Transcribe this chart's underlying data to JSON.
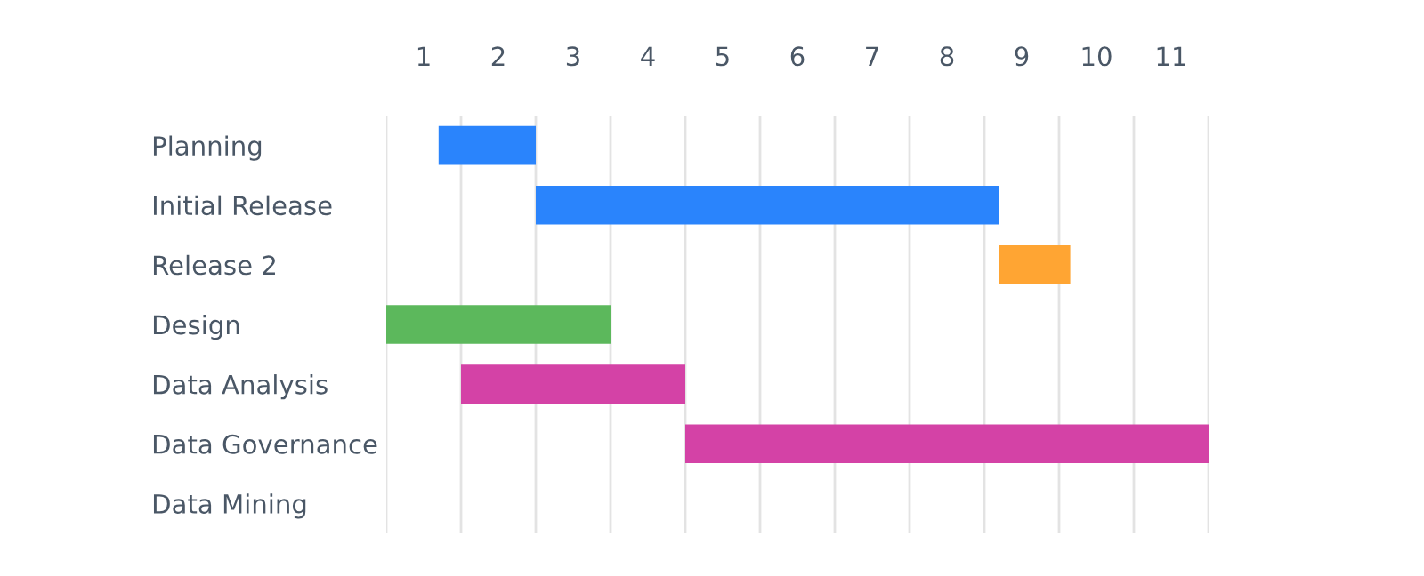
{
  "chart_data": {
    "type": "bar",
    "orientation": "horizontal",
    "categories": [
      "Planning",
      "Initial Release",
      "Release 2",
      "Design",
      "Data Analysis",
      "Data Governance",
      "Data Mining"
    ],
    "base": [
      1.2,
      2.5,
      8.7,
      0.5,
      1.5,
      4.5,
      null
    ],
    "values": [
      1.3,
      6.2,
      0.95,
      3.0,
      3.0,
      7.0,
      null
    ],
    "colors": [
      "#2a84fc",
      "#2a84fc",
      "#ffa533",
      "#5cb85c",
      "#d442a6",
      "#d442a6",
      "#d442a6"
    ],
    "xlim": [
      0.5,
      11.5
    ],
    "xticks": [
      {
        "value": 0.5,
        "label": null
      },
      1,
      {
        "value": 1.5,
        "label": null
      },
      2,
      {
        "value": 2.5,
        "label": null
      },
      3,
      {
        "value": 3.5,
        "label": null
      },
      4,
      {
        "value": 4.5,
        "label": null
      },
      5,
      {
        "value": 5.5,
        "label": null
      },
      6,
      {
        "value": 6.5,
        "label": null
      },
      7,
      {
        "value": 7.5,
        "label": null
      },
      8,
      {
        "value": 8.5,
        "label": null
      },
      9,
      {
        "value": 9.5,
        "label": null
      },
      10,
      {
        "value": 10.5,
        "label": null
      },
      11,
      {
        "value": 11.5,
        "label": null
      }
    ],
    "grid": "x"
  }
}
